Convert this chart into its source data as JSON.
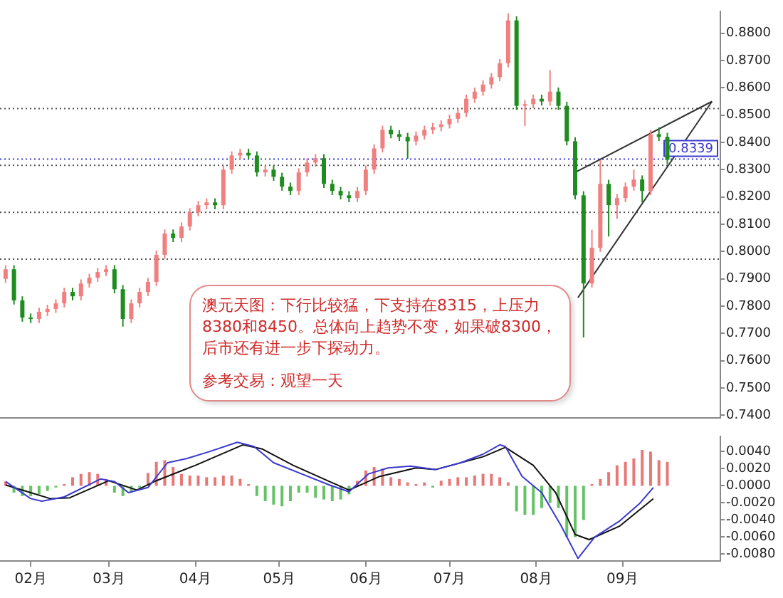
{
  "chart_data": [
    {
      "type": "candlestick",
      "tick_labels": "y",
      "x": [
        "--01-23",
        "--01-26",
        "--01-29",
        "--02-01",
        "--02-04",
        "--02-07",
        "--02-10",
        "--02-13",
        "--02-16",
        "--02-19",
        "--02-22",
        "--02-25",
        "--02-28",
        "--03-03",
        "--03-06",
        "--03-09",
        "--03-12",
        "--03-15",
        "--03-18",
        "--03-21",
        "--03-24",
        "--03-27",
        "--03-30",
        "--04-02",
        "--04-05",
        "--04-08",
        "--04-11",
        "--04-14",
        "--04-17",
        "--04-20",
        "--04-23",
        "--04-26",
        "--04-29",
        "--05-02",
        "--05-05",
        "--05-08",
        "--05-11",
        "--05-14",
        "--05-17",
        "--05-20",
        "--05-23",
        "--05-26",
        "--05-29",
        "--06-01",
        "--06-04",
        "--06-07",
        "--06-10",
        "--06-13",
        "--06-16",
        "--06-19",
        "--06-22",
        "--06-25",
        "--06-28",
        "--07-01",
        "--07-04",
        "--07-07",
        "--07-10",
        "--07-13",
        "--07-16",
        "--07-19",
        "--07-22",
        "--07-25",
        "--07-28",
        "--07-31",
        "--08-03",
        "--08-06",
        "--08-09",
        "--08-12",
        "--08-15",
        "--08-18",
        "--08-21",
        "--08-24",
        "--08-27",
        "--08-30",
        "--09-02",
        "--09-05",
        "--09-08",
        "--09-11",
        "--09-14",
        "--09-17"
      ],
      "ohlc": [
        [
          0.79,
          0.795,
          0.7885,
          0.7935
        ],
        [
          0.7935,
          0.795,
          0.7806,
          0.7821
        ],
        [
          0.7821,
          0.7836,
          0.7743,
          0.7758
        ],
        [
          0.7758,
          0.7773,
          0.7738,
          0.7753
        ],
        [
          0.7753,
          0.7794,
          0.7738,
          0.7779
        ],
        [
          0.7779,
          0.7805,
          0.7764,
          0.779
        ],
        [
          0.779,
          0.7825,
          0.7775,
          0.781
        ],
        [
          0.781,
          0.7867,
          0.7795,
          0.7852
        ],
        [
          0.7852,
          0.7867,
          0.7821,
          0.7836
        ],
        [
          0.7836,
          0.7898,
          0.7821,
          0.7883
        ],
        [
          0.7883,
          0.7919,
          0.7868,
          0.7904
        ],
        [
          0.7904,
          0.794,
          0.7889,
          0.7925
        ],
        [
          0.7925,
          0.795,
          0.791,
          0.7935
        ],
        [
          0.7935,
          0.795,
          0.7847,
          0.7862
        ],
        [
          0.7862,
          0.7877,
          0.7725,
          0.7753
        ],
        [
          0.7753,
          0.7825,
          0.7738,
          0.781
        ],
        [
          0.781,
          0.7867,
          0.7795,
          0.7852
        ],
        [
          0.7852,
          0.7904,
          0.7837,
          0.7889
        ],
        [
          0.7889,
          0.8003,
          0.7874,
          0.7988
        ],
        [
          0.7988,
          0.8081,
          0.7973,
          0.8066
        ],
        [
          0.8066,
          0.8081,
          0.8035,
          0.805
        ],
        [
          0.805,
          0.8107,
          0.8035,
          0.8092
        ],
        [
          0.8092,
          0.8159,
          0.8077,
          0.8144
        ],
        [
          0.8144,
          0.8185,
          0.8129,
          0.817
        ],
        [
          0.817,
          0.8195,
          0.8155,
          0.818
        ],
        [
          0.818,
          0.8195,
          0.8155,
          0.817
        ],
        [
          0.817,
          0.8315,
          0.8155,
          0.83
        ],
        [
          0.83,
          0.8367,
          0.8285,
          0.8352
        ],
        [
          0.8352,
          0.8377,
          0.8337,
          0.8362
        ],
        [
          0.8362,
          0.8377,
          0.8337,
          0.8352
        ],
        [
          0.8352,
          0.8367,
          0.8275,
          0.829
        ],
        [
          0.829,
          0.8315,
          0.8275,
          0.83
        ],
        [
          0.83,
          0.8315,
          0.8259,
          0.8274
        ],
        [
          0.8274,
          0.8289,
          0.8223,
          0.8238
        ],
        [
          0.8238,
          0.8253,
          0.8207,
          0.8222
        ],
        [
          0.8222,
          0.8305,
          0.8207,
          0.829
        ],
        [
          0.829,
          0.8341,
          0.8275,
          0.8326
        ],
        [
          0.8326,
          0.8357,
          0.8311,
          0.8342
        ],
        [
          0.8342,
          0.8357,
          0.8233,
          0.8248
        ],
        [
          0.8248,
          0.8263,
          0.8207,
          0.8222
        ],
        [
          0.8222,
          0.8237,
          0.8191,
          0.8206
        ],
        [
          0.8206,
          0.8221,
          0.8181,
          0.8196
        ],
        [
          0.8196,
          0.8237,
          0.8181,
          0.8222
        ],
        [
          0.8222,
          0.8315,
          0.8207,
          0.83
        ],
        [
          0.83,
          0.8393,
          0.8285,
          0.8378
        ],
        [
          0.8378,
          0.8461,
          0.8363,
          0.8446
        ],
        [
          0.8446,
          0.8461,
          0.8415,
          0.843
        ],
        [
          0.843,
          0.8445,
          0.8405,
          0.842
        ],
        [
          0.842,
          0.8435,
          0.834,
          0.8404
        ],
        [
          0.8404,
          0.844,
          0.8389,
          0.8425
        ],
        [
          0.8425,
          0.8461,
          0.841,
          0.8446
        ],
        [
          0.8446,
          0.8471,
          0.8431,
          0.8456
        ],
        [
          0.8456,
          0.8481,
          0.8441,
          0.8466
        ],
        [
          0.8466,
          0.8501,
          0.8451,
          0.8486
        ],
        [
          0.8486,
          0.8523,
          0.8471,
          0.8508
        ],
        [
          0.8508,
          0.8575,
          0.8493,
          0.856
        ],
        [
          0.856,
          0.8601,
          0.8545,
          0.8586
        ],
        [
          0.8586,
          0.8627,
          0.8571,
          0.8612
        ],
        [
          0.8612,
          0.8654,
          0.8597,
          0.8639
        ],
        [
          0.8639,
          0.8705,
          0.8624,
          0.869
        ],
        [
          0.869,
          0.8873,
          0.8675,
          0.8847
        ],
        [
          0.8847,
          0.8862,
          0.8519,
          0.8534
        ],
        [
          0.8534,
          0.8555,
          0.846,
          0.854
        ],
        [
          0.854,
          0.8575,
          0.8525,
          0.856
        ],
        [
          0.856,
          0.8575,
          0.8535,
          0.855
        ],
        [
          0.855,
          0.8665,
          0.8535,
          0.8586
        ],
        [
          0.8586,
          0.8601,
          0.8519,
          0.8534
        ],
        [
          0.8534,
          0.8549,
          0.8389,
          0.8404
        ],
        [
          0.8404,
          0.8419,
          0.8191,
          0.8206
        ],
        [
          0.8206,
          0.8221,
          0.7685,
          0.7883
        ],
        [
          0.7883,
          0.808,
          0.7868,
          0.8014
        ],
        [
          0.8014,
          0.8335,
          0.7999,
          0.8248
        ],
        [
          0.8248,
          0.8263,
          0.8055,
          0.817
        ],
        [
          0.817,
          0.8211,
          0.812,
          0.8196
        ],
        [
          0.8196,
          0.8253,
          0.8181,
          0.8238
        ],
        [
          0.8238,
          0.83,
          0.8223,
          0.8264
        ],
        [
          0.8264,
          0.8279,
          0.818,
          0.8222
        ],
        [
          0.8222,
          0.8445,
          0.8207,
          0.843
        ],
        [
          0.843,
          0.8455,
          0.8405,
          0.842
        ],
        [
          0.842,
          0.8435,
          0.8321,
          0.8336
        ]
      ],
      "series": [
        {
          "type": "line",
          "x": [
            "--08-15",
            "--10-03"
          ],
          "values": [
            0.829,
            0.855
          ],
          "color": "#333333"
        },
        {
          "type": "line",
          "x": [
            "--08-16",
            "--10-03"
          ],
          "values": [
            0.7831,
            0.855
          ],
          "color": "#333333"
        }
      ],
      "xlim": [
        "--01-21",
        "--10-06"
      ],
      "ylim": [
        0.739,
        0.888
      ],
      "yticks": [
        {
          "value": 0.74,
          "label": "0.7400"
        },
        {
          "value": 0.75,
          "label": "0.7500"
        },
        {
          "value": 0.76,
          "label": "0.7600"
        },
        {
          "value": 0.77,
          "label": "0.7700"
        },
        {
          "value": 0.78,
          "label": "0.7800"
        },
        {
          "value": 0.79,
          "label": "0.7900"
        },
        {
          "value": 0.8,
          "label": "0.8000"
        },
        {
          "value": 0.81,
          "label": "0.8100"
        },
        {
          "value": 0.82,
          "label": "0.8200"
        },
        {
          "value": 0.83,
          "label": "0.8300"
        },
        {
          "value": 0.84,
          "label": "0.8400"
        },
        {
          "value": 0.85,
          "label": "0.8500"
        },
        {
          "value": 0.86,
          "label": "0.8600"
        },
        {
          "value": 0.87,
          "label": "0.8700"
        },
        {
          "value": 0.88,
          "label": "0.8800"
        }
      ],
      "ref_lines": [
        {
          "axis": "y",
          "value": 0.8524,
          "color": "#555555",
          "line_style": "dotted"
        },
        {
          "axis": "y",
          "value": 0.8339,
          "label": "0.8339",
          "color": "#3a3ad0",
          "line_style": "dotted"
        },
        {
          "axis": "y",
          "value": 0.8316,
          "color": "#555555",
          "line_style": "dotted"
        },
        {
          "axis": "y",
          "value": 0.8144,
          "color": "#555555",
          "line_style": "dotted"
        },
        {
          "axis": "y",
          "value": 0.7972,
          "color": "#555555",
          "line_style": "dotted"
        }
      ],
      "annotations": [
        "澳元天图：下行比较猛，下支持在8315，上压力8380和8450。总体向上趋势不变，如果破8300，后市还有进一步下探动力。",
        "参考交易：观望一天"
      ]
    },
    {
      "type": "bar",
      "series": [
        {
          "type": "bar",
          "x": [
            "--01-23",
            "--01-26",
            "--01-29",
            "--02-01",
            "--02-04",
            "--02-07",
            "--02-10",
            "--02-13",
            "--02-16",
            "--02-19",
            "--02-22",
            "--02-25",
            "--02-28",
            "--03-03",
            "--03-06",
            "--03-09",
            "--03-12",
            "--03-15",
            "--03-18",
            "--03-21",
            "--03-24",
            "--03-27",
            "--03-30",
            "--04-02",
            "--04-05",
            "--04-08",
            "--04-11",
            "--04-14",
            "--04-17",
            "--04-20",
            "--04-23",
            "--04-26",
            "--04-29",
            "--05-02",
            "--05-05",
            "--05-08",
            "--05-11",
            "--05-14",
            "--05-17",
            "--05-20",
            "--05-23",
            "--05-26",
            "--05-29",
            "--06-01",
            "--06-04",
            "--06-07",
            "--06-10",
            "--06-13",
            "--06-16",
            "--06-19",
            "--06-22",
            "--06-25",
            "--06-28",
            "--07-01",
            "--07-04",
            "--07-07",
            "--07-10",
            "--07-13",
            "--07-16",
            "--07-19",
            "--07-22",
            "--07-25",
            "--07-28",
            "--07-31",
            "--08-03",
            "--08-06",
            "--08-09",
            "--08-12",
            "--08-15",
            "--08-18",
            "--08-21",
            "--08-24",
            "--08-27",
            "--08-30",
            "--09-02",
            "--09-05",
            "--09-08",
            "--09-11",
            "--09-14",
            "--09-17"
          ],
          "values": [
            0.0005,
            -0.0008,
            -0.0012,
            -0.0012,
            -0.001,
            -0.0006,
            -0.0002,
            0.0002,
            0.001,
            0.0014,
            0.0016,
            0.0014,
            0.0008,
            -0.0008,
            -0.0012,
            -0.0008,
            -0.0002,
            0.0015,
            0.0028,
            0.003,
            0.0022,
            0.0014,
            0.0012,
            0.0012,
            0.001,
            0.001,
            0.0012,
            0.0012,
            0.0008,
            0.0002,
            -0.0012,
            -0.0018,
            -0.0022,
            -0.0024,
            -0.0018,
            -0.0008,
            -0.0008,
            -0.0014,
            -0.0016,
            -0.0018,
            -0.0016,
            -0.001,
            0.0006,
            0.0018,
            0.0022,
            0.002,
            0.001,
            0.0008,
            0.0004,
            0.0002,
            0.0004,
            -0.0002,
            0.0006,
            0.0008,
            0.001,
            0.001,
            0.0012,
            0.0014,
            0.0014,
            0.001,
            0.0004,
            -0.003,
            -0.0034,
            -0.0034,
            -0.0026,
            -0.002,
            -0.0026,
            -0.006,
            -0.006,
            -0.004,
            0.0002,
            0.0008,
            0.0016,
            0.0024,
            0.0028,
            0.0032,
            0.0042,
            0.004,
            0.003,
            0.0028
          ],
          "colors": [
            "#e87878",
            "#66c266",
            "#66c266",
            "#66c266",
            "#66c266",
            "#66c266",
            "#66c266",
            "#e87878",
            "#e87878",
            "#e87878",
            "#e87878",
            "#e87878",
            "#e87878",
            "#66c266",
            "#66c266",
            "#66c266",
            "#66c266",
            "#e87878",
            "#e87878",
            "#e87878",
            "#e87878",
            "#e87878",
            "#e87878",
            "#e87878",
            "#e87878",
            "#e87878",
            "#e87878",
            "#e87878",
            "#e87878",
            "#e87878",
            "#66c266",
            "#66c266",
            "#66c266",
            "#66c266",
            "#66c266",
            "#66c266",
            "#66c266",
            "#66c266",
            "#66c266",
            "#66c266",
            "#66c266",
            "#66c266",
            "#e87878",
            "#e87878",
            "#e87878",
            "#e87878",
            "#e87878",
            "#e87878",
            "#e87878",
            "#e87878",
            "#e87878",
            "#66c266",
            "#e87878",
            "#e87878",
            "#e87878",
            "#e87878",
            "#e87878",
            "#e87878",
            "#e87878",
            "#e87878",
            "#e87878",
            "#66c266",
            "#66c266",
            "#66c266",
            "#66c266",
            "#66c266",
            "#66c266",
            "#66c266",
            "#66c266",
            "#66c266",
            "#e87878",
            "#e87878",
            "#e87878",
            "#e87878",
            "#e87878",
            "#e87878",
            "#e87878",
            "#e87878",
            "#e87878",
            "#e87878"
          ]
        },
        {
          "type": "line",
          "color": "#3a3ad0",
          "x": [
            "--01-23",
            "--02-01",
            "--02-05",
            "--02-13",
            "--02-26",
            "--03-03",
            "--03-08",
            "--03-15",
            "--03-22",
            "--03-29",
            "--04-06",
            "--04-16",
            "--04-22",
            "--04-29",
            "--05-09",
            "--05-19",
            "--05-26",
            "--06-02",
            "--06-09",
            "--06-17",
            "--06-26",
            "--07-05",
            "--07-13",
            "--07-19",
            "--07-21",
            "--07-27",
            "--08-03",
            "--08-10",
            "--08-16",
            "--08-22",
            "--08-31",
            "--09-07",
            "--09-12"
          ],
          "values": [
            0.0005,
            -0.0015,
            -0.0018,
            -0.0013,
            0.0008,
            0.0005,
            -0.0008,
            -0.0002,
            0.0027,
            0.0032,
            0.004,
            0.0051,
            0.0046,
            0.0027,
            0.0014,
            0.0001,
            -0.0007,
            0.0014,
            0.0021,
            0.0023,
            0.0019,
            0.0027,
            0.0037,
            0.0048,
            0.0046,
            0.0011,
            -0.0008,
            -0.0047,
            -0.0085,
            -0.006,
            -0.0041,
            -0.0021,
            -0.0002
          ]
        },
        {
          "type": "line",
          "color": "#111111",
          "x": [
            "--01-23",
            "--02-01",
            "--02-08",
            "--02-15",
            "--03-01",
            "--03-11",
            "--03-18",
            "--04-01",
            "--04-18",
            "--04-25",
            "--05-06",
            "--05-19",
            "--05-26",
            "--06-06",
            "--06-19",
            "--06-26",
            "--07-13",
            "--07-21",
            "--07-31",
            "--08-08",
            "--08-15",
            "--08-20",
            "--08-31",
            "--09-12"
          ],
          "values": [
            0.0001,
            -0.0008,
            -0.0015,
            -0.0014,
            0.0006,
            -0.0005,
            0.0006,
            0.0024,
            0.0048,
            0.0043,
            0.0024,
            0.0005,
            -0.0005,
            0.0011,
            0.0021,
            0.0019,
            0.0034,
            0.0045,
            0.0024,
            -0.0008,
            -0.0057,
            -0.0063,
            -0.0047,
            -0.0015
          ]
        }
      ],
      "xlim": [
        "--01-21",
        "--10-06"
      ],
      "xticks": [
        {
          "value": "--02-01",
          "label": "02月"
        },
        {
          "value": "--03-01",
          "label": "03月"
        },
        {
          "value": "--04-01",
          "label": "04月"
        },
        {
          "value": "--05-01",
          "label": "05月"
        },
        {
          "value": "--06-01",
          "label": "06月"
        },
        {
          "value": "--07-01",
          "label": "07月"
        },
        {
          "value": "--08-01",
          "label": "08月"
        },
        {
          "value": "--09-01",
          "label": "09月"
        }
      ],
      "ylim": [
        -0.0088,
        0.0058
      ],
      "yticks": [
        {
          "value": 0.004,
          "label": "0.0040"
        },
        {
          "value": 0.002,
          "label": "0.0020"
        },
        {
          "value": 0,
          "label": "0.0000"
        },
        {
          "value": -0.002,
          "label": "-0.0020"
        },
        {
          "value": -0.004,
          "label": "-0.0040"
        },
        {
          "value": -0.006,
          "label": "-0.0060"
        },
        {
          "value": -0.008,
          "label": "-0.0080"
        }
      ]
    }
  ]
}
